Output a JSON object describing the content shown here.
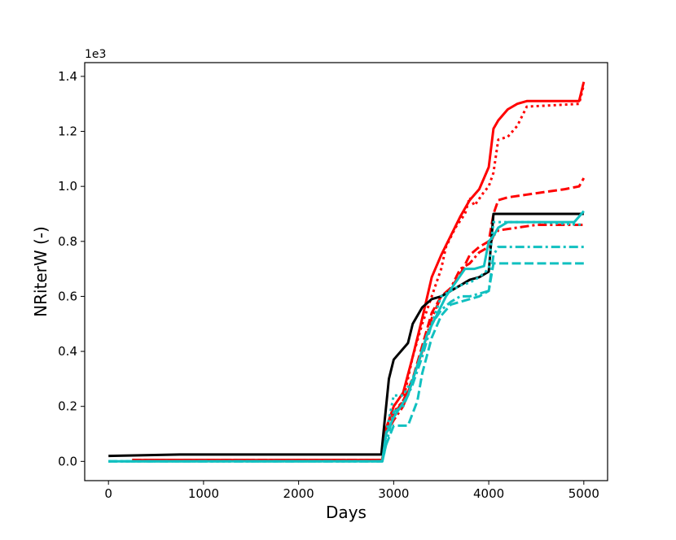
{
  "chart_data": {
    "type": "line",
    "title": "",
    "xlabel": "Days",
    "ylabel": "NRiterW  (-)",
    "y_offset_label": "1e3",
    "xlim": [
      -250,
      5250
    ],
    "ylim": [
      -0.07,
      1.45
    ],
    "x_ticks": [
      0,
      1000,
      2000,
      3000,
      4000,
      5000
    ],
    "y_ticks": [
      0.0,
      0.2,
      0.4,
      0.6,
      0.8,
      1.0,
      1.2,
      1.4
    ],
    "grid": false,
    "legend": "none",
    "series": [
      {
        "color": "#ff0000",
        "style": "dotted",
        "x": [
          250,
          2880,
          2920,
          3000,
          3100,
          3200,
          3300,
          3400,
          3500,
          3550,
          3650,
          3750,
          3800,
          3850,
          3950,
          4000,
          4050,
          4100,
          4200,
          4300,
          4400,
          4950,
          5000
        ],
        "y": [
          0.005,
          0.005,
          0.1,
          0.18,
          0.22,
          0.38,
          0.5,
          0.6,
          0.7,
          0.78,
          0.85,
          0.9,
          0.96,
          0.93,
          0.98,
          1.0,
          1.05,
          1.17,
          1.18,
          1.22,
          1.29,
          1.3,
          1.37
        ]
      },
      {
        "color": "#ff0000",
        "style": "dashed",
        "x": [
          250,
          2880,
          2920,
          3000,
          3100,
          3200,
          3300,
          3400,
          3500,
          3600,
          3700,
          3800,
          3900,
          4000,
          4050,
          4100,
          4200,
          4400,
          4600,
          4800,
          4950,
          5000
        ],
        "y": [
          0.005,
          0.005,
          0.1,
          0.17,
          0.22,
          0.3,
          0.42,
          0.54,
          0.6,
          0.63,
          0.68,
          0.75,
          0.78,
          0.8,
          0.9,
          0.95,
          0.96,
          0.97,
          0.98,
          0.99,
          1.0,
          1.03
        ]
      },
      {
        "color": "#ff0000",
        "style": "dashdot",
        "x": [
          250,
          2880,
          2920,
          3000,
          3100,
          3200,
          3300,
          3400,
          3500,
          3600,
          3700,
          3800,
          3900,
          4000,
          4050,
          4100,
          4500,
          4800,
          5000
        ],
        "y": [
          0.005,
          0.005,
          0.1,
          0.15,
          0.2,
          0.3,
          0.4,
          0.52,
          0.6,
          0.63,
          0.7,
          0.72,
          0.76,
          0.78,
          0.82,
          0.84,
          0.86,
          0.86,
          0.86
        ]
      },
      {
        "color": "#ff0000",
        "style": "solid",
        "x": [
          250,
          2880,
          2920,
          3000,
          3100,
          3200,
          3300,
          3400,
          3500,
          3600,
          3700,
          3800,
          3900,
          3950,
          4000,
          4050,
          4100,
          4200,
          4300,
          4400,
          4600,
          4800,
          4950,
          5000
        ],
        "y": [
          0.005,
          0.005,
          0.12,
          0.2,
          0.25,
          0.38,
          0.52,
          0.67,
          0.75,
          0.82,
          0.89,
          0.95,
          0.99,
          1.03,
          1.07,
          1.21,
          1.24,
          1.28,
          1.3,
          1.31,
          1.31,
          1.31,
          1.31,
          1.38
        ]
      },
      {
        "color": "#000000",
        "style": "solid",
        "x": [
          0,
          750,
          2870,
          2900,
          2950,
          3000,
          3150,
          3200,
          3300,
          3400,
          3500,
          3600,
          3700,
          3800,
          3900,
          4000,
          4050,
          4500,
          5000
        ],
        "y": [
          0.02,
          0.025,
          0.025,
          0.13,
          0.3,
          0.37,
          0.43,
          0.5,
          0.56,
          0.59,
          0.6,
          0.62,
          0.64,
          0.66,
          0.67,
          0.69,
          0.9,
          0.9,
          0.9
        ]
      },
      {
        "color": "#11c0c0",
        "style": "dashed",
        "x": [
          0,
          2880,
          2920,
          3000,
          3150,
          3250,
          3300,
          3400,
          3500,
          3600,
          3700,
          3800,
          3900,
          4000,
          4050,
          4500,
          5000
        ],
        "y": [
          0.0,
          0.0,
          0.06,
          0.13,
          0.13,
          0.22,
          0.32,
          0.45,
          0.53,
          0.57,
          0.58,
          0.59,
          0.6,
          0.62,
          0.72,
          0.72,
          0.72
        ]
      },
      {
        "color": "#11c0c0",
        "style": "dotted",
        "x": [
          0,
          2880,
          2920,
          3000,
          3100,
          3200,
          3300,
          3400,
          3500,
          3600,
          3700,
          3800,
          3900,
          4000,
          4050,
          4500,
          5000
        ],
        "y": [
          0.0,
          0.0,
          0.1,
          0.24,
          0.24,
          0.3,
          0.4,
          0.5,
          0.6,
          0.62,
          0.64,
          0.65,
          0.67,
          0.7,
          0.87,
          0.87,
          0.86
        ]
      },
      {
        "color": "#11c0c0",
        "style": "dashdot",
        "x": [
          0,
          2880,
          2920,
          3000,
          3100,
          3200,
          3300,
          3400,
          3500,
          3600,
          3700,
          3800,
          3900,
          4000,
          4050,
          4100,
          4500,
          5000
        ],
        "y": [
          0.0,
          0.0,
          0.06,
          0.18,
          0.2,
          0.28,
          0.38,
          0.5,
          0.55,
          0.58,
          0.6,
          0.6,
          0.61,
          0.62,
          0.75,
          0.78,
          0.78,
          0.78
        ]
      },
      {
        "color": "#11c0c0",
        "style": "solid",
        "x": [
          0,
          2880,
          2920,
          3000,
          3150,
          3250,
          3350,
          3450,
          3550,
          3650,
          3750,
          3850,
          3950,
          4000,
          4050,
          4100,
          4200,
          4300,
          4500,
          4900,
          5000
        ],
        "y": [
          0.0,
          0.0,
          0.1,
          0.16,
          0.24,
          0.35,
          0.46,
          0.53,
          0.6,
          0.65,
          0.7,
          0.7,
          0.71,
          0.8,
          0.82,
          0.85,
          0.87,
          0.87,
          0.87,
          0.87,
          0.91
        ]
      }
    ]
  }
}
